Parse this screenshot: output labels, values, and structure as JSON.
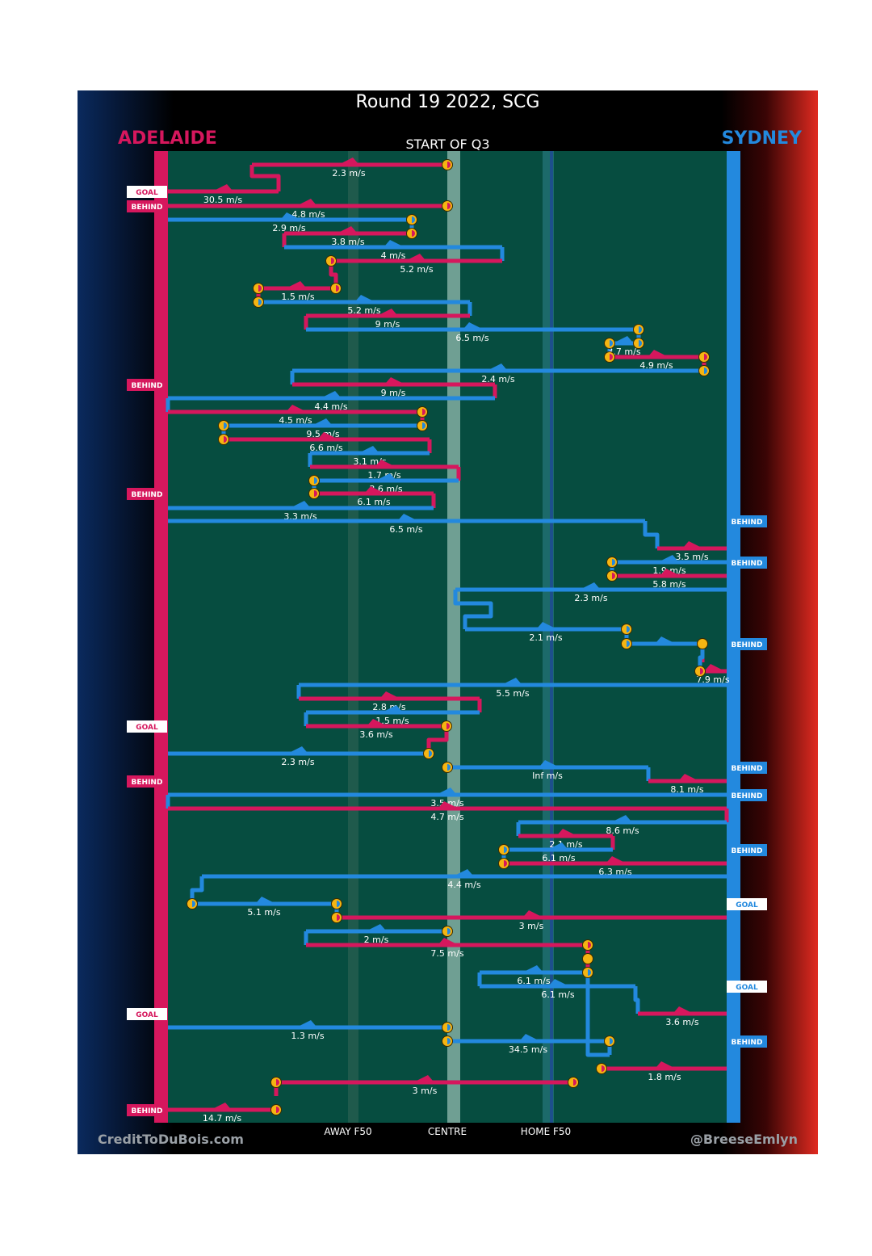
{
  "chart_data": {
    "type": "timeline",
    "title": "Round 19 2022, SCG",
    "period": "START OF Q3",
    "teams": {
      "away": {
        "name": "ADELAIDE",
        "color": "#d6175d"
      },
      "home": {
        "name": "SYDNEY",
        "color": "#2389de"
      }
    },
    "x_labels": [
      "AWAY F50",
      "CENTRE",
      "HOME F50"
    ],
    "credits": {
      "left": "CreditToDuBois.com",
      "right": "@BreeseEmlyn"
    },
    "events": [
      {
        "team": "away",
        "speed": "2.3 m/s"
      },
      {
        "team": "away",
        "speed": "30.5 m/s",
        "result": "GOAL"
      },
      {
        "team": "away",
        "speed": "4.8 m/s",
        "result": "BEHIND"
      },
      {
        "team": "home",
        "speed": "2.9 m/s"
      },
      {
        "team": "away",
        "speed": "3.8 m/s"
      },
      {
        "team": "home",
        "speed": "4 m/s"
      },
      {
        "team": "away",
        "speed": "5.2 m/s"
      },
      {
        "team": "away",
        "speed": "1.5 m/s"
      },
      {
        "team": "home",
        "speed": "5.2 m/s"
      },
      {
        "team": "away",
        "speed": "9 m/s"
      },
      {
        "team": "home",
        "speed": "6.5 m/s"
      },
      {
        "team": "home",
        "speed": "3.7 m/s"
      },
      {
        "team": "away",
        "speed": "4.9 m/s"
      },
      {
        "team": "home",
        "speed": "2.4 m/s"
      },
      {
        "team": "away",
        "speed": "9 m/s",
        "result": "BEHIND"
      },
      {
        "team": "home",
        "speed": "4.4 m/s"
      },
      {
        "team": "away",
        "speed": "4.5 m/s"
      },
      {
        "team": "home",
        "speed": "9.5 m/s"
      },
      {
        "team": "away",
        "speed": "6.6 m/s"
      },
      {
        "team": "home",
        "speed": "3.1 m/s"
      },
      {
        "team": "away",
        "speed": "1.7 m/s"
      },
      {
        "team": "home",
        "speed": "3.6 m/s"
      },
      {
        "team": "away",
        "speed": "6.1 m/s",
        "result": "BEHIND"
      },
      {
        "team": "home",
        "speed": "3.3 m/s"
      },
      {
        "team": "home",
        "speed": "6.5 m/s",
        "result": "BEHIND"
      },
      {
        "team": "away",
        "speed": "3.5 m/s"
      },
      {
        "team": "home",
        "speed": "1.9 m/s",
        "result": "BEHIND"
      },
      {
        "team": "away",
        "speed": "5.8 m/s"
      },
      {
        "team": "home",
        "speed": "2.3 m/s"
      },
      {
        "team": "home",
        "speed": "2.1 m/s"
      },
      {
        "team": "home",
        "result": "BEHIND"
      },
      {
        "team": "away",
        "speed": "7.9 m/s"
      },
      {
        "team": "home",
        "speed": "5.5 m/s"
      },
      {
        "team": "away",
        "speed": "2.8 m/s"
      },
      {
        "team": "home",
        "speed": "1.5 m/s"
      },
      {
        "team": "away",
        "speed": "3.6 m/s",
        "result": "GOAL"
      },
      {
        "team": "home",
        "speed": "2.3 m/s"
      },
      {
        "team": "home",
        "speed": "Inf m/s",
        "result": "BEHIND"
      },
      {
        "team": "away",
        "speed": "8.1 m/s",
        "result": "BEHIND"
      },
      {
        "team": "home",
        "speed": "3.5 m/s",
        "result": "BEHIND"
      },
      {
        "team": "away",
        "speed": "4.7 m/s"
      },
      {
        "team": "home",
        "speed": "8.6 m/s"
      },
      {
        "team": "away",
        "speed": "2.1 m/s"
      },
      {
        "team": "home",
        "speed": "6.1 m/s",
        "result": "BEHIND"
      },
      {
        "team": "away",
        "speed": "6.3 m/s"
      },
      {
        "team": "home",
        "speed": "4.4 m/s"
      },
      {
        "team": "home",
        "speed": "5.1 m/s",
        "result": "GOAL"
      },
      {
        "team": "away",
        "speed": "3 m/s"
      },
      {
        "team": "home",
        "speed": "2 m/s"
      },
      {
        "team": "away",
        "speed": "7.5 m/s"
      },
      {
        "team": "home",
        "speed": "6.1 m/s"
      },
      {
        "team": "home",
        "speed": "6.1 m/s",
        "result": "GOAL"
      },
      {
        "team": "away",
        "speed": "3.6 m/s",
        "result": "GOAL"
      },
      {
        "team": "home",
        "speed": "1.3 m/s"
      },
      {
        "team": "home",
        "speed": "34.5 m/s",
        "result": "BEHIND"
      },
      {
        "team": "away",
        "speed": "1.8 m/s"
      },
      {
        "team": "away",
        "speed": "3 m/s"
      },
      {
        "team": "away",
        "speed": "14.7 m/s",
        "result": "BEHIND"
      }
    ]
  }
}
